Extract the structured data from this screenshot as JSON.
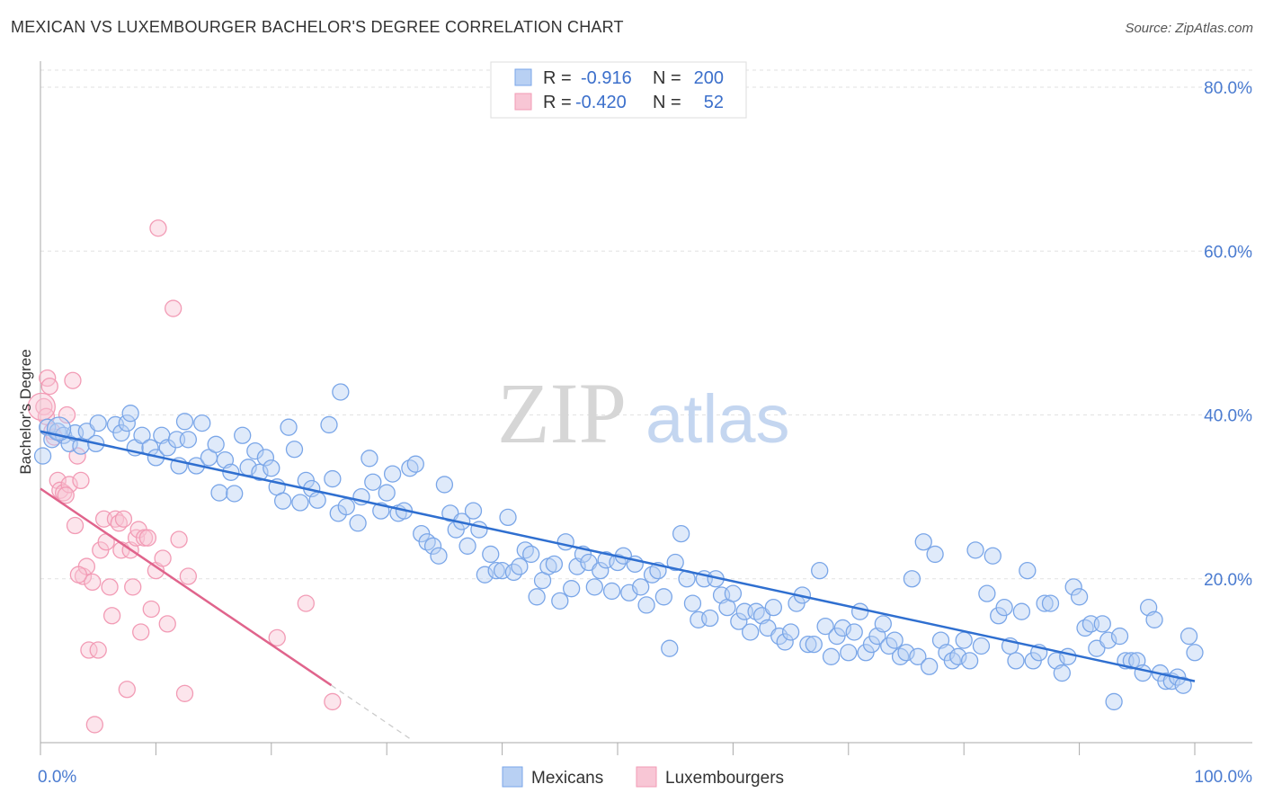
{
  "title": "MEXICAN VS LUXEMBOURGER BACHELOR'S DEGREE CORRELATION CHART",
  "source": "Source: ZipAtlas.com",
  "watermark": {
    "zip": "ZIP",
    "atlas": "atlas"
  },
  "chart_data": {
    "type": "scatter",
    "ylabel": "Bachelor's Degree",
    "xlim": [
      0,
      100
    ],
    "ylim": [
      0,
      80
    ],
    "x_tick_labels": [
      "0.0%",
      "100.0%"
    ],
    "y_ticks": [
      20,
      40,
      60,
      80
    ],
    "y_tick_labels": [
      "20.0%",
      "40.0%",
      "60.0%",
      "80.0%"
    ],
    "legend_top": [
      {
        "r_label": "R =",
        "r_value": "-0.916",
        "n_label": "N =",
        "n_value": "200"
      },
      {
        "r_label": "R =",
        "r_value": "-0.420",
        "n_label": "N =",
        "n_value": "52"
      }
    ],
    "series": [
      {
        "name": "Mexicans",
        "color": "#7aa6e8",
        "line_color": "#2f6fd0",
        "trend": {
          "x0": 0,
          "y0": 38.0,
          "x1": 100,
          "y1": 7.5
        },
        "points": [
          [
            0.2,
            35.0
          ],
          [
            0.6,
            38.5
          ],
          [
            1.0,
            37.0
          ],
          [
            1.5,
            38.0
          ],
          [
            2.0,
            37.5
          ],
          [
            2.5,
            36.5
          ],
          [
            3.0,
            37.8
          ],
          [
            3.5,
            36.2
          ],
          [
            4.0,
            38.0
          ],
          [
            4.8,
            36.5
          ],
          [
            5.0,
            39.0
          ],
          [
            6.5,
            38.8
          ],
          [
            7.0,
            37.8
          ],
          [
            7.5,
            39.0
          ],
          [
            7.8,
            40.2
          ],
          [
            8.2,
            36.0
          ],
          [
            8.8,
            37.5
          ],
          [
            9.5,
            36.0
          ],
          [
            10.0,
            34.8
          ],
          [
            10.5,
            37.5
          ],
          [
            11.0,
            36.0
          ],
          [
            11.8,
            37.0
          ],
          [
            12.0,
            33.8
          ],
          [
            12.5,
            39.2
          ],
          [
            12.8,
            37.0
          ],
          [
            13.5,
            33.8
          ],
          [
            14.0,
            39.0
          ],
          [
            14.6,
            34.8
          ],
          [
            15.2,
            36.4
          ],
          [
            15.5,
            30.5
          ],
          [
            16.0,
            34.5
          ],
          [
            16.5,
            33.0
          ],
          [
            16.8,
            30.4
          ],
          [
            17.5,
            37.5
          ],
          [
            18.0,
            33.6
          ],
          [
            18.6,
            35.6
          ],
          [
            19.0,
            33.0
          ],
          [
            19.5,
            34.8
          ],
          [
            20.0,
            33.5
          ],
          [
            20.5,
            31.2
          ],
          [
            21.0,
            29.5
          ],
          [
            21.5,
            38.5
          ],
          [
            22.0,
            35.8
          ],
          [
            22.5,
            29.3
          ],
          [
            23.0,
            32.0
          ],
          [
            23.5,
            31.0
          ],
          [
            24.0,
            29.6
          ],
          [
            25.0,
            38.8
          ],
          [
            25.3,
            32.2
          ],
          [
            25.8,
            28.0
          ],
          [
            26.0,
            42.8
          ],
          [
            26.5,
            28.8
          ],
          [
            27.5,
            26.8
          ],
          [
            27.8,
            30.0
          ],
          [
            28.5,
            34.7
          ],
          [
            28.8,
            31.8
          ],
          [
            29.5,
            28.3
          ],
          [
            30.0,
            30.5
          ],
          [
            30.5,
            32.8
          ],
          [
            31.0,
            28.0
          ],
          [
            31.5,
            28.3
          ],
          [
            32.0,
            33.5
          ],
          [
            32.5,
            34.0
          ],
          [
            33.0,
            25.5
          ],
          [
            33.5,
            24.5
          ],
          [
            34.0,
            24.0
          ],
          [
            34.5,
            22.8
          ],
          [
            35.0,
            31.5
          ],
          [
            35.5,
            28.0
          ],
          [
            36.0,
            26.0
          ],
          [
            36.5,
            27.0
          ],
          [
            37.0,
            24.0
          ],
          [
            37.5,
            28.3
          ],
          [
            38.0,
            26.0
          ],
          [
            38.5,
            20.5
          ],
          [
            39.0,
            23.0
          ],
          [
            39.5,
            21.0
          ],
          [
            40.0,
            21.0
          ],
          [
            40.5,
            27.5
          ],
          [
            41.0,
            20.8
          ],
          [
            41.5,
            21.5
          ],
          [
            42.0,
            23.5
          ],
          [
            42.5,
            23.0
          ],
          [
            43.0,
            17.8
          ],
          [
            43.5,
            19.8
          ],
          [
            44.0,
            21.5
          ],
          [
            44.5,
            21.8
          ],
          [
            45.0,
            17.3
          ],
          [
            45.5,
            24.5
          ],
          [
            46.0,
            18.8
          ],
          [
            46.5,
            21.5
          ],
          [
            47.0,
            23.0
          ],
          [
            47.5,
            22.0
          ],
          [
            48.0,
            19.0
          ],
          [
            48.5,
            21.0
          ],
          [
            49.0,
            22.3
          ],
          [
            49.5,
            18.5
          ],
          [
            50.0,
            22.0
          ],
          [
            50.5,
            22.8
          ],
          [
            51.0,
            18.3
          ],
          [
            51.5,
            21.8
          ],
          [
            52.0,
            19.0
          ],
          [
            52.5,
            16.8
          ],
          [
            53.0,
            20.5
          ],
          [
            53.5,
            21.0
          ],
          [
            54.0,
            17.8
          ],
          [
            54.5,
            11.5
          ],
          [
            55.0,
            22.0
          ],
          [
            55.5,
            25.5
          ],
          [
            56.0,
            20.0
          ],
          [
            56.5,
            17.0
          ],
          [
            57.0,
            15.0
          ],
          [
            57.5,
            20.0
          ],
          [
            58.0,
            15.2
          ],
          [
            58.5,
            20.0
          ],
          [
            59.0,
            18.0
          ],
          [
            59.5,
            16.5
          ],
          [
            60.0,
            18.2
          ],
          [
            60.5,
            14.8
          ],
          [
            61.0,
            16.0
          ],
          [
            61.5,
            13.5
          ],
          [
            62.0,
            16.0
          ],
          [
            62.5,
            15.5
          ],
          [
            63.0,
            14.0
          ],
          [
            63.5,
            16.5
          ],
          [
            64.0,
            13.0
          ],
          [
            64.5,
            12.3
          ],
          [
            65.0,
            13.5
          ],
          [
            65.5,
            17.0
          ],
          [
            66.0,
            18.0
          ],
          [
            66.5,
            12.0
          ],
          [
            67.0,
            12.0
          ],
          [
            67.5,
            21.0
          ],
          [
            68.0,
            14.2
          ],
          [
            68.5,
            10.5
          ],
          [
            69.0,
            13.0
          ],
          [
            69.5,
            14.0
          ],
          [
            70.0,
            11.0
          ],
          [
            70.5,
            13.5
          ],
          [
            71.0,
            16.0
          ],
          [
            71.5,
            11.0
          ],
          [
            72.0,
            12.0
          ],
          [
            72.5,
            13.0
          ],
          [
            73.0,
            14.5
          ],
          [
            73.5,
            11.8
          ],
          [
            74.0,
            12.5
          ],
          [
            74.5,
            10.5
          ],
          [
            75.0,
            11.0
          ],
          [
            75.5,
            20.0
          ],
          [
            76.0,
            10.5
          ],
          [
            76.5,
            24.5
          ],
          [
            77.0,
            9.3
          ],
          [
            77.5,
            23.0
          ],
          [
            78.0,
            12.5
          ],
          [
            78.5,
            11.0
          ],
          [
            79.0,
            10.0
          ],
          [
            79.5,
            10.5
          ],
          [
            80.0,
            12.5
          ],
          [
            80.5,
            10.0
          ],
          [
            81.0,
            23.5
          ],
          [
            81.5,
            11.8
          ],
          [
            82.0,
            18.2
          ],
          [
            82.5,
            22.8
          ],
          [
            83.0,
            15.5
          ],
          [
            83.5,
            16.5
          ],
          [
            84.0,
            11.8
          ],
          [
            84.5,
            10.0
          ],
          [
            85.0,
            16.0
          ],
          [
            85.5,
            21.0
          ],
          [
            86.0,
            10.0
          ],
          [
            86.5,
            11.0
          ],
          [
            87.0,
            17.0
          ],
          [
            87.5,
            17.0
          ],
          [
            88.0,
            10.0
          ],
          [
            88.5,
            8.5
          ],
          [
            89.0,
            10.5
          ],
          [
            89.5,
            19.0
          ],
          [
            90.0,
            17.8
          ],
          [
            90.5,
            14.0
          ],
          [
            91.0,
            14.5
          ],
          [
            91.5,
            11.5
          ],
          [
            92.0,
            14.5
          ],
          [
            92.5,
            12.5
          ],
          [
            93.0,
            5.0
          ],
          [
            93.5,
            13.0
          ],
          [
            94.0,
            10.0
          ],
          [
            94.5,
            10.0
          ],
          [
            95.0,
            10.0
          ],
          [
            95.5,
            8.5
          ],
          [
            96.0,
            16.5
          ],
          [
            96.5,
            15.0
          ],
          [
            97.0,
            8.5
          ],
          [
            97.5,
            7.5
          ],
          [
            98.0,
            7.5
          ],
          [
            98.5,
            8.0
          ],
          [
            99.0,
            7.0
          ],
          [
            99.5,
            13.0
          ],
          [
            100.0,
            11.0
          ]
        ]
      },
      {
        "name": "Luxembourgers",
        "color": "#f29bb5",
        "line_color": "#e0648c",
        "trend": {
          "x0": 0,
          "y0": 31.0,
          "x1": 25.2,
          "y1": 7.0
        },
        "trend_dashed": {
          "x0": 25.2,
          "y0": 7.0,
          "x1": 32.0,
          "y1": 0.5
        },
        "points": [
          [
            0.3,
            41.0
          ],
          [
            0.5,
            39.8
          ],
          [
            0.6,
            44.5
          ],
          [
            0.8,
            43.5
          ],
          [
            1.0,
            38.0
          ],
          [
            1.2,
            37.3
          ],
          [
            1.5,
            32.0
          ],
          [
            1.7,
            30.8
          ],
          [
            2.0,
            30.5
          ],
          [
            2.3,
            40.0
          ],
          [
            2.5,
            31.5
          ],
          [
            2.8,
            44.2
          ],
          [
            3.0,
            26.5
          ],
          [
            3.2,
            35.0
          ],
          [
            3.5,
            32.0
          ],
          [
            3.7,
            20.3
          ],
          [
            4.0,
            21.5
          ],
          [
            4.2,
            11.3
          ],
          [
            4.5,
            19.6
          ],
          [
            4.7,
            2.2
          ],
          [
            5.0,
            11.3
          ],
          [
            5.2,
            23.5
          ],
          [
            5.5,
            27.3
          ],
          [
            5.7,
            24.5
          ],
          [
            6.0,
            19.0
          ],
          [
            6.2,
            15.5
          ],
          [
            6.5,
            27.3
          ],
          [
            6.8,
            26.8
          ],
          [
            7.0,
            23.5
          ],
          [
            7.2,
            27.3
          ],
          [
            7.5,
            6.5
          ],
          [
            7.8,
            23.5
          ],
          [
            8.0,
            19.0
          ],
          [
            8.3,
            25.0
          ],
          [
            8.5,
            26.0
          ],
          [
            8.7,
            13.5
          ],
          [
            9.0,
            25.0
          ],
          [
            9.3,
            25.0
          ],
          [
            9.6,
            16.3
          ],
          [
            10.0,
            21.0
          ],
          [
            10.2,
            62.8
          ],
          [
            10.6,
            22.5
          ],
          [
            11.0,
            14.5
          ],
          [
            11.5,
            53.0
          ],
          [
            12.0,
            24.8
          ],
          [
            12.5,
            6.0
          ],
          [
            12.8,
            20.3
          ],
          [
            20.5,
            12.8
          ],
          [
            23.0,
            17.0
          ],
          [
            25.3,
            5.0
          ],
          [
            2.2,
            30.2
          ],
          [
            3.3,
            20.5
          ]
        ]
      }
    ]
  }
}
